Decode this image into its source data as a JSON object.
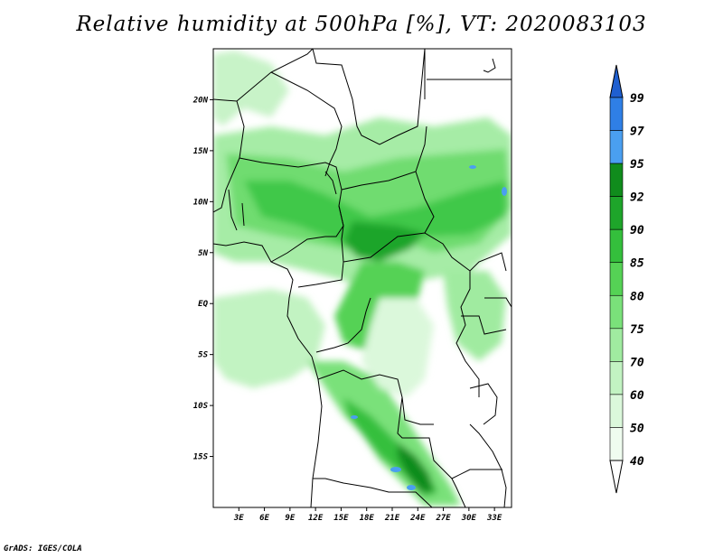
{
  "title": "Relative humidity at 500hPa [%], VT: 2020083103",
  "credit": "GrADS: IGES/COLA",
  "map": {
    "projection": "lat-lon",
    "lon_range": [
      0,
      35
    ],
    "lat_range": [
      -20,
      25
    ],
    "x_ticks": [
      "3E",
      "6E",
      "9E",
      "12E",
      "15E",
      "18E",
      "21E",
      "24E",
      "27E",
      "30E",
      "33E"
    ],
    "y_ticks": [
      "20N",
      "15N",
      "10N",
      "5N",
      "EQ",
      "5S",
      "10S",
      "15S"
    ],
    "variable": "Relative humidity",
    "level": "500hPa",
    "units": "%",
    "valid_time": "2020083103"
  },
  "colorbar": {
    "labels": [
      "99",
      "97",
      "95",
      "92",
      "90",
      "85",
      "80",
      "75",
      "70",
      "60",
      "50",
      "40"
    ],
    "colors": [
      "#1f5fd0",
      "#2f7fe6",
      "#4a9ff0",
      "#108c1c",
      "#1ea52a",
      "#34bf3c",
      "#55d255",
      "#7ae17a",
      "#a0eba0",
      "#c2f3c2",
      "#dbf8db",
      "#effcef"
    ]
  }
}
